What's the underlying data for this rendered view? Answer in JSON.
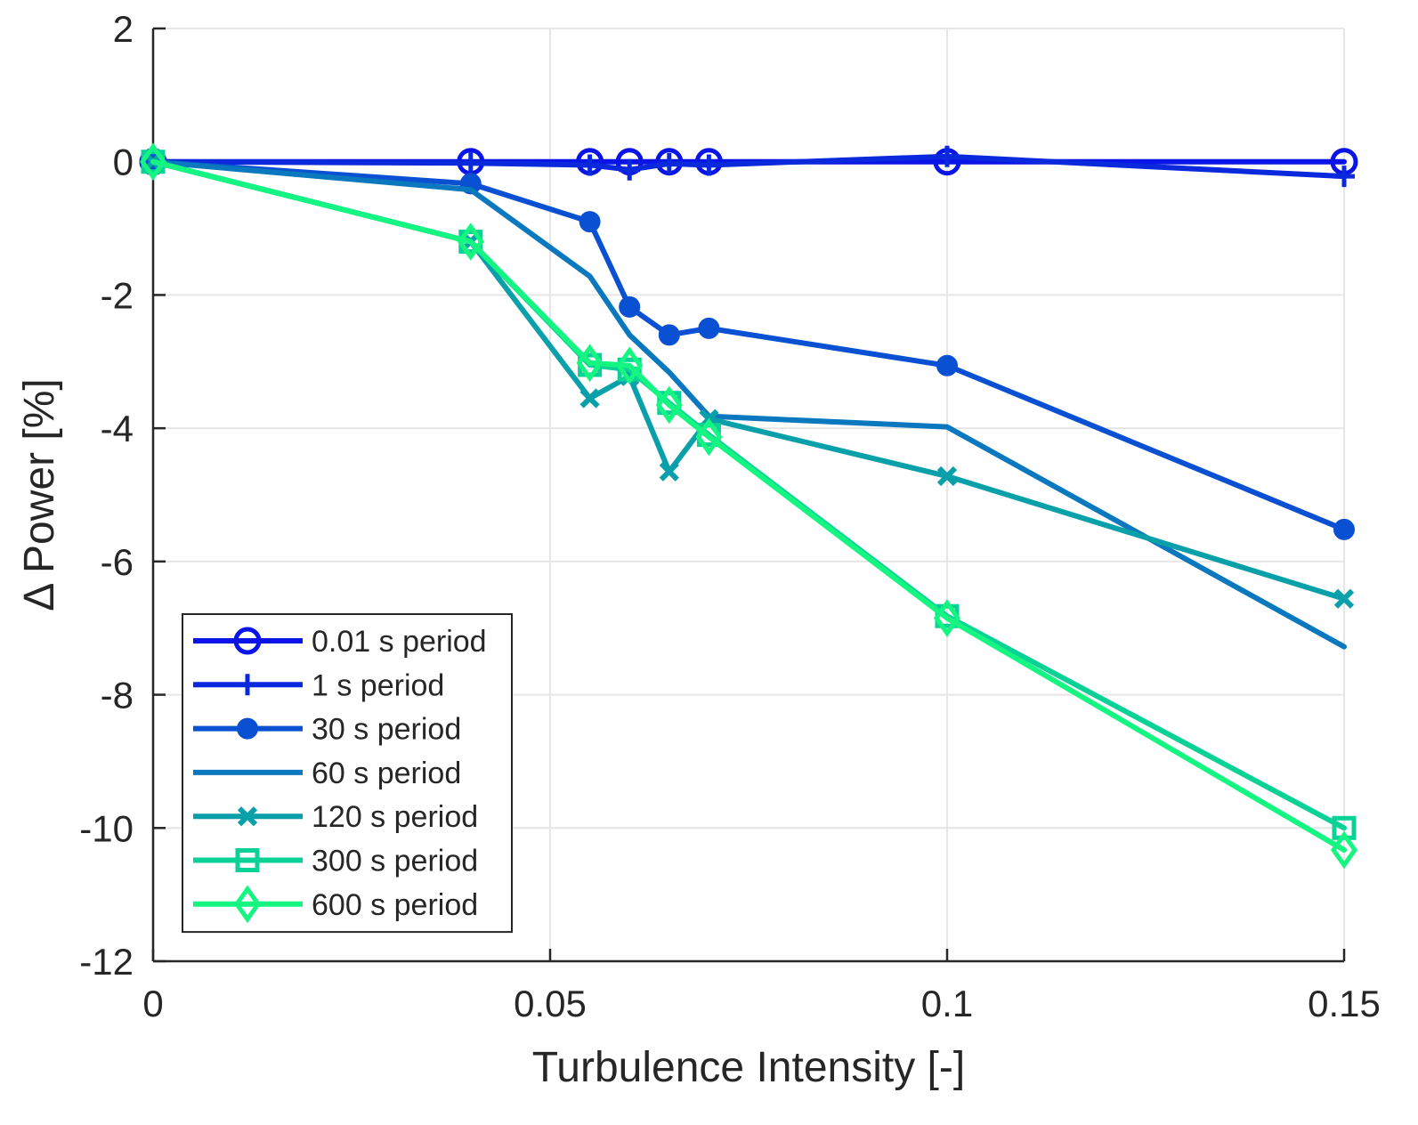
{
  "chart_data": {
    "type": "line",
    "title": "",
    "xlabel": "Turbulence Intensity [-]",
    "ylabel": "Δ Power [%]",
    "xlim": [
      0,
      0.15
    ],
    "ylim": [
      -12,
      2
    ],
    "xticks": [
      0,
      0.05,
      0.1,
      0.15
    ],
    "xtick_labels": [
      "0",
      "0.05",
      "0.1",
      "0.15"
    ],
    "yticks": [
      2,
      0,
      -2,
      -4,
      -6,
      -8,
      -10,
      -12
    ],
    "ytick_labels": [
      "2",
      "0",
      "-2",
      "-4",
      "-6",
      "-8",
      "-10",
      "-12"
    ],
    "grid": true,
    "legend_position": "bottom-left",
    "x": [
      0,
      0.04,
      0.055,
      0.06,
      0.065,
      0.07,
      0.1,
      0.15
    ],
    "series": [
      {
        "name": "0.01 s period",
        "marker": "circle",
        "color": "#0a14e6",
        "values": [
          0,
          0,
          0,
          0,
          0,
          0,
          0,
          0
        ]
      },
      {
        "name": "1 s period",
        "marker": "plus",
        "color": "#0a28dc",
        "values": [
          0,
          -0.02,
          -0.05,
          -0.12,
          -0.03,
          -0.05,
          0.08,
          -0.22
        ]
      },
      {
        "name": "30 s period",
        "marker": "dot",
        "color": "#0a50d2",
        "values": [
          0,
          -0.33,
          -0.9,
          -2.18,
          -2.6,
          -2.5,
          -3.06,
          -5.52
        ]
      },
      {
        "name": "60 s period",
        "marker": "none",
        "color": "#0a78be",
        "values": [
          0,
          -0.42,
          -1.72,
          -2.6,
          -3.16,
          -3.82,
          -3.98,
          -7.28
        ]
      },
      {
        "name": "120 s period",
        "marker": "x",
        "color": "#0aa0aa",
        "values": [
          0,
          -1.2,
          -3.55,
          -3.22,
          -4.65,
          -3.86,
          -4.72,
          -6.56
        ]
      },
      {
        "name": "300 s period",
        "marker": "square",
        "color": "#0ad296",
        "values": [
          0,
          -1.2,
          -3.05,
          -3.12,
          -3.62,
          -4.1,
          -6.82,
          -10.0
        ]
      },
      {
        "name": "600 s period",
        "marker": "diamond",
        "color": "#14f582",
        "values": [
          0,
          -1.2,
          -3.02,
          -3.06,
          -3.65,
          -4.13,
          -6.85,
          -10.33
        ]
      }
    ]
  }
}
